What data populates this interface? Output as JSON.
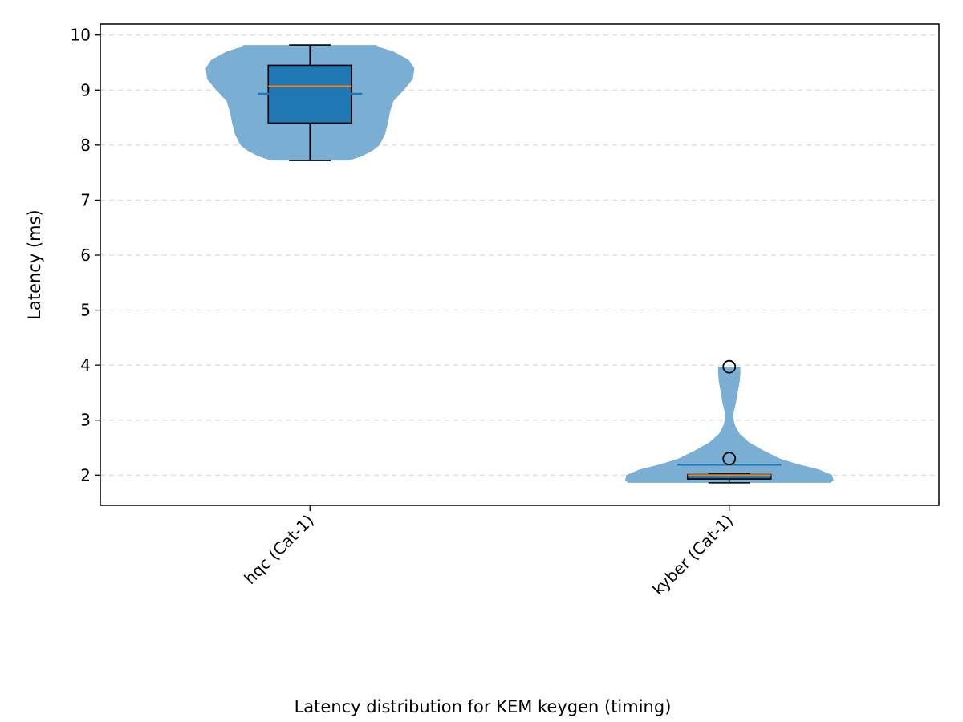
{
  "chart_data": {
    "type": "violin",
    "caption": "Latency distribution for KEM keygen (timing)",
    "xlabel": "",
    "ylabel": "Latency (ms)",
    "ylim": [
      1.45,
      10.2
    ],
    "yticks": [
      2,
      3,
      4,
      5,
      6,
      7,
      8,
      9,
      10
    ],
    "grid": "y-dashed",
    "colors": {
      "violin": "#7aaed3",
      "box": "#1f77b4",
      "median": "#ff7f0e",
      "mean": "#1f77b4",
      "outline": "#000000"
    },
    "categories": [
      "hqc (Cat-1)",
      "kyber (Cat-1)"
    ],
    "series": [
      {
        "category": "hqc (Cat-1)",
        "min": 7.72,
        "q1": 8.4,
        "median": 9.07,
        "q3": 9.45,
        "max": 9.82,
        "mean": 8.93,
        "outliers": [],
        "density": [
          [
            7.72,
            0.56
          ],
          [
            7.8,
            0.75
          ],
          [
            7.9,
            0.9
          ],
          [
            8.0,
            1.0
          ],
          [
            8.2,
            1.08
          ],
          [
            8.4,
            1.12
          ],
          [
            8.6,
            1.15
          ],
          [
            8.8,
            1.2
          ],
          [
            9.0,
            1.35
          ],
          [
            9.2,
            1.48
          ],
          [
            9.4,
            1.5
          ],
          [
            9.55,
            1.42
          ],
          [
            9.7,
            1.2
          ],
          [
            9.78,
            1.0
          ],
          [
            9.82,
            0.95
          ]
        ]
      },
      {
        "category": "kyber (Cat-1)",
        "min": 1.86,
        "q1": 1.93,
        "median": 2.0,
        "q3": 2.01,
        "max": 2.02,
        "mean": 2.19,
        "outliers": [
          2.3,
          3.97
        ],
        "density": [
          [
            1.86,
            1.55
          ],
          [
            1.9,
            1.6
          ],
          [
            2.0,
            1.58
          ],
          [
            2.1,
            1.38
          ],
          [
            2.2,
            1.05
          ],
          [
            2.3,
            0.78
          ],
          [
            2.45,
            0.52
          ],
          [
            2.6,
            0.3
          ],
          [
            2.75,
            0.16
          ],
          [
            2.9,
            0.09
          ],
          [
            3.05,
            0.06
          ],
          [
            3.15,
            0.07
          ],
          [
            3.3,
            0.1
          ],
          [
            3.5,
            0.13
          ],
          [
            3.7,
            0.16
          ],
          [
            3.85,
            0.17
          ],
          [
            3.97,
            0.17
          ]
        ]
      }
    ]
  }
}
